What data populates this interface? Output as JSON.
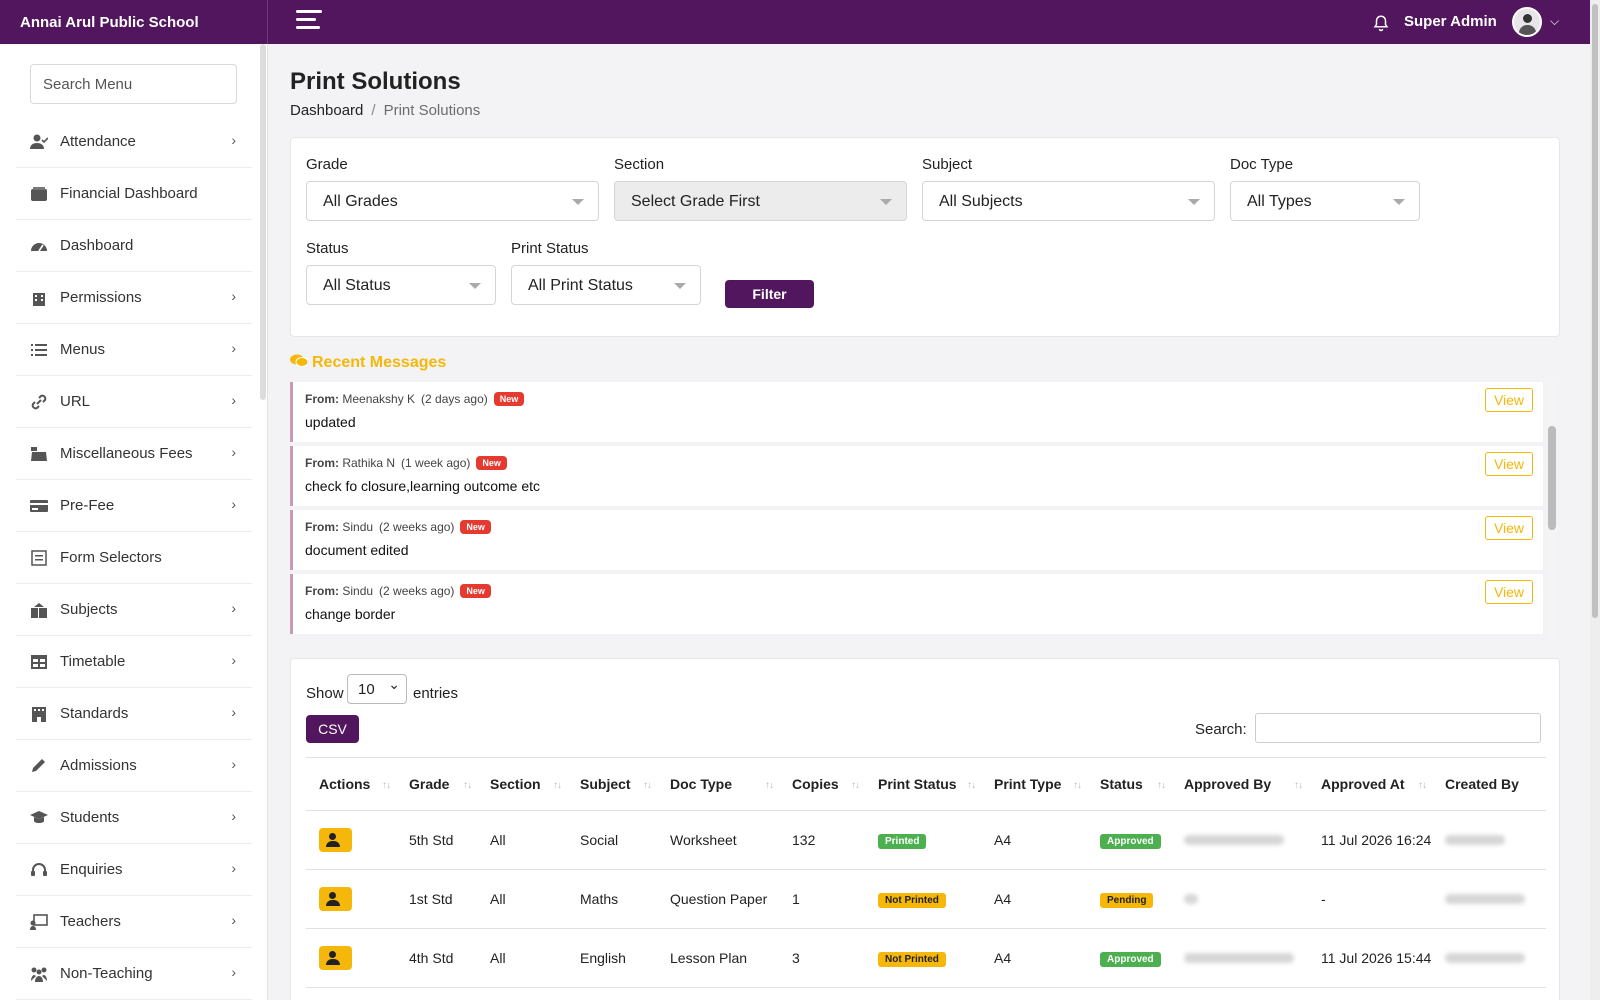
{
  "header": {
    "school_name": "Annai Arul Public School",
    "user_name": "Super Admin"
  },
  "sidebar": {
    "search_placeholder": "Search Menu",
    "items": [
      {
        "label": "Attendance",
        "icon": "user-check-icon",
        "has_arrow": true
      },
      {
        "label": "Financial Dashboard",
        "icon": "wallet-icon",
        "has_arrow": false
      },
      {
        "label": "Dashboard",
        "icon": "gauge-icon",
        "has_arrow": false
      },
      {
        "label": "Permissions",
        "icon": "building-icon",
        "has_arrow": true
      },
      {
        "label": "Menus",
        "icon": "list-icon",
        "has_arrow": true
      },
      {
        "label": "URL",
        "icon": "link-icon",
        "has_arrow": true
      },
      {
        "label": "Miscellaneous Fees",
        "icon": "cash-register-icon",
        "has_arrow": true
      },
      {
        "label": "Pre-Fee",
        "icon": "credit-card-icon",
        "has_arrow": true
      },
      {
        "label": "Form Selectors",
        "icon": "form-icon",
        "has_arrow": false
      },
      {
        "label": "Subjects",
        "icon": "books-icon",
        "has_arrow": true
      },
      {
        "label": "Timetable",
        "icon": "table-icon",
        "has_arrow": true
      },
      {
        "label": "Standards",
        "icon": "school-building-icon",
        "has_arrow": true
      },
      {
        "label": "Admissions",
        "icon": "pen-icon",
        "has_arrow": true
      },
      {
        "label": "Students",
        "icon": "graduation-cap-icon",
        "has_arrow": true
      },
      {
        "label": "Enquiries",
        "icon": "headset-icon",
        "has_arrow": true
      },
      {
        "label": "Teachers",
        "icon": "chalkboard-teacher-icon",
        "has_arrow": true
      },
      {
        "label": "Non-Teaching",
        "icon": "people-icon",
        "has_arrow": true
      }
    ]
  },
  "page": {
    "title": "Print Solutions",
    "breadcrumb_home": "Dashboard",
    "breadcrumb_sep": "/",
    "breadcrumb_current": "Print Solutions"
  },
  "filters": {
    "grade_label": "Grade",
    "grade_value": "All Grades",
    "section_label": "Section",
    "section_value": "Select Grade First",
    "subject_label": "Subject",
    "subject_value": "All Subjects",
    "doctype_label": "Doc Type",
    "doctype_value": "All Types",
    "status_label": "Status",
    "status_value": "All Status",
    "printstatus_label": "Print Status",
    "printstatus_value": "All Print Status",
    "filter_button": "Filter"
  },
  "recent": {
    "title": "Recent Messages",
    "from_label": "From:",
    "new_label": "New",
    "view_label": "View",
    "messages": [
      {
        "from": "Meenakshy K",
        "ago": "(2 days ago)",
        "body": "updated"
      },
      {
        "from": "Rathika N",
        "ago": "(1 week ago)",
        "body": "check fo closure,learning outcome etc"
      },
      {
        "from": "Sindu",
        "ago": "(2 weeks ago)",
        "body": "document edited"
      },
      {
        "from": "Sindu",
        "ago": "(2 weeks ago)",
        "body": "change border"
      }
    ]
  },
  "table": {
    "show_label": "Show",
    "entries_value": "10",
    "entries_label": "entries",
    "csv_button": "CSV",
    "search_label": "Search:",
    "columns": [
      "Actions",
      "Grade",
      "Section",
      "Subject",
      "Doc Type",
      "Copies",
      "Print Status",
      "Print Type",
      "Status",
      "Approved By",
      "Approved At",
      "Created By"
    ],
    "rows": [
      {
        "grade": "5th Std",
        "section": "All",
        "subject": "Social",
        "doc_type": "Worksheet",
        "copies": "132",
        "print_status": "Printed",
        "print_type": "A4",
        "status": "Approved",
        "approved_at": "11 Jul 2026 16:24"
      },
      {
        "grade": "1st Std",
        "section": "All",
        "subject": "Maths",
        "doc_type": "Question Paper",
        "copies": "1",
        "print_status": "Not Printed",
        "print_type": "A4",
        "status": "Pending",
        "approved_at": "-"
      },
      {
        "grade": "4th Std",
        "section": "All",
        "subject": "English",
        "doc_type": "Lesson Plan",
        "copies": "3",
        "print_status": "Not Printed",
        "print_type": "A4",
        "status": "Approved",
        "approved_at": "11 Jul 2026 15:44"
      }
    ]
  },
  "colors": {
    "brand": "#52165e",
    "accent": "#f5b70a",
    "success": "#4caf50",
    "danger": "#e53a2f"
  }
}
